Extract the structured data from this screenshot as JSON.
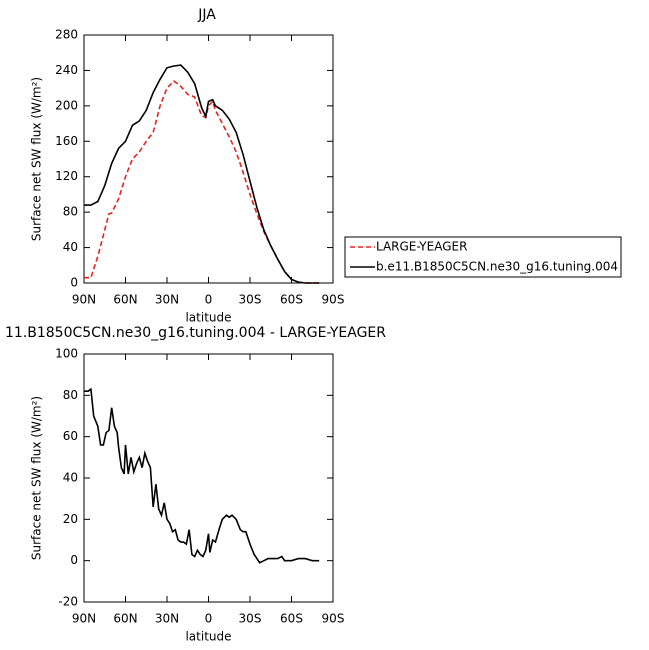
{
  "chart_data": [
    {
      "type": "line",
      "title": "JJA",
      "xlabel": "latitude",
      "ylabel": "Surface net SW flux (W/m²)",
      "x": [
        90,
        85,
        80,
        75,
        72,
        70,
        65,
        60,
        55,
        50,
        45,
        40,
        35,
        30,
        25,
        20,
        15,
        10,
        5,
        2,
        0,
        -3,
        -5,
        -10,
        -15,
        -20,
        -25,
        -30,
        -35,
        -40,
        -45,
        -50,
        -55,
        -60,
        -65,
        -70,
        -75,
        -80
      ],
      "series": [
        {
          "name": "LARGE-YEAGER",
          "color": "#e8231f",
          "line_style": "dashed",
          "values": [
            6,
            6,
            30,
            60,
            78,
            79,
            95,
            120,
            140,
            148,
            160,
            170,
            200,
            220,
            228,
            222,
            213,
            210,
            189,
            187,
            200,
            205,
            195,
            180,
            165,
            148,
            125,
            100,
            78,
            58,
            42,
            27,
            13,
            4,
            1,
            0,
            0,
            0
          ]
        },
        {
          "name": "b.e11.B1850C5CN.ne30_g16.tuning.004",
          "color": "#000000",
          "line_style": "solid",
          "values": [
            88,
            88,
            92,
            110,
            125,
            135,
            152,
            160,
            178,
            183,
            195,
            215,
            230,
            243,
            245,
            246,
            238,
            225,
            198,
            188,
            205,
            207,
            200,
            195,
            185,
            170,
            145,
            115,
            85,
            60,
            42,
            27,
            13,
            4,
            1,
            0,
            0,
            0
          ]
        }
      ],
      "xlim": [
        90,
        -90
      ],
      "xticks": [
        {
          "value": 90,
          "label": "90N"
        },
        {
          "value": 60,
          "label": "60N"
        },
        {
          "value": 30,
          "label": "30N"
        },
        0,
        {
          "value": -30,
          "label": "30S"
        },
        {
          "value": -60,
          "label": "60S"
        },
        {
          "value": -90,
          "label": "90S"
        }
      ],
      "ylim": [
        0,
        280
      ],
      "yticks": [
        0,
        40,
        80,
        120,
        160,
        200,
        240,
        280
      ]
    },
    {
      "type": "line",
      "title": "11.B1850C5CN.ne30_g16.tuning.004 - LARGE-YEAGER",
      "xlabel": "latitude",
      "ylabel": "Surface net SW flux (W/m²)",
      "x": [
        90,
        87,
        85,
        83,
        80,
        78,
        76,
        74,
        72,
        70,
        68,
        66,
        65,
        63,
        61,
        60,
        58,
        56,
        54,
        52,
        50,
        48,
        46,
        44,
        42,
        40,
        38,
        36,
        34,
        32,
        30,
        28,
        26,
        24,
        22,
        20,
        18,
        16,
        14,
        12,
        10,
        8,
        6,
        4,
        2,
        0,
        -1,
        -3,
        -5,
        -8,
        -10,
        -13,
        -15,
        -17,
        -20,
        -23,
        -25,
        -27,
        -30,
        -33,
        -35,
        -37,
        -40,
        -43,
        -45,
        -48,
        -50,
        -53,
        -55,
        -58,
        -60,
        -65,
        -68,
        -70,
        -75,
        -80
      ],
      "values": [
        82,
        82,
        83,
        70,
        65,
        56,
        56,
        62,
        63,
        74,
        65,
        62,
        55,
        45,
        42,
        56,
        42,
        50,
        43,
        47,
        50,
        45,
        52,
        48,
        45,
        26,
        37,
        25,
        22,
        28,
        20,
        18,
        14,
        15,
        10,
        9,
        9,
        8,
        15,
        3,
        2,
        5,
        3,
        2,
        5,
        13,
        4,
        10,
        9,
        16,
        20,
        22,
        21,
        22,
        20,
        15,
        14,
        14,
        8,
        3,
        1,
        -1,
        0,
        1,
        1,
        1,
        1,
        2,
        0,
        0,
        0,
        1,
        1,
        1,
        0,
        0
      ],
      "color": "#000000",
      "xlim": [
        90,
        -90
      ],
      "xticks": [
        {
          "value": 90,
          "label": "90N"
        },
        {
          "value": 60,
          "label": "60N"
        },
        {
          "value": 30,
          "label": "30N"
        },
        0,
        {
          "value": -30,
          "label": "30S"
        },
        {
          "value": -60,
          "label": "60S"
        },
        {
          "value": -90,
          "label": "90S"
        }
      ],
      "ylim": [
        -20,
        100
      ],
      "yticks": [
        -20,
        0,
        20,
        40,
        60,
        80,
        100
      ]
    }
  ]
}
